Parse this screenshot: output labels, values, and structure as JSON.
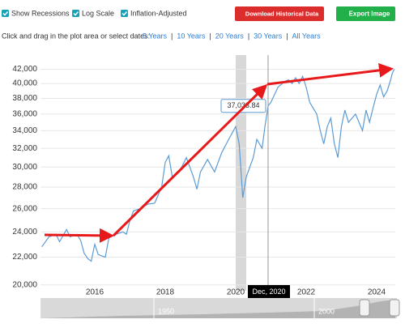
{
  "controls": {
    "checkboxes": [
      "Show Recessions",
      "Log Scale",
      "Inflation-Adjusted"
    ],
    "buttons": [
      "Download Historical Data",
      "Export Image"
    ],
    "date_prompt": "Click and drag in the plot area or select dates:",
    "range_links": [
      "5 Years",
      "10 Years",
      "20 Years",
      "30 Years",
      "All Years"
    ],
    "range_separator": "|"
  },
  "chart_data": {
    "type": "line",
    "log_scale": true,
    "grid": true,
    "ylim": [
      19600,
      43500
    ],
    "yticks": [
      {
        "value": 20000,
        "label": "20,000"
      },
      {
        "value": 22000,
        "label": "22,000"
      },
      {
        "value": 24000,
        "label": "24,000"
      },
      {
        "value": 26000,
        "label": "26,000"
      },
      {
        "value": 28000,
        "label": "28,000"
      },
      {
        "value": 30000,
        "label": "30,000"
      },
      {
        "value": 32000,
        "label": "32,000"
      },
      {
        "value": 34000,
        "label": "34,000"
      },
      {
        "value": 36000,
        "label": "36,000"
      },
      {
        "value": 38000,
        "label": "38,000"
      },
      {
        "value": 40000,
        "label": "40,000"
      },
      {
        "value": 42000,
        "label": "42,000"
      }
    ],
    "xlim": [
      2014.46,
      2024.53
    ],
    "xticks": [
      2016,
      2018,
      2020,
      2022,
      2024
    ],
    "recessions": [
      [
        2020.0,
        2020.3
      ]
    ],
    "series": [
      {
        "name": "Value",
        "color": "#5b9bd5",
        "x": [
          2014.5,
          2014.7,
          2014.9,
          2015.0,
          2015.2,
          2015.3,
          2015.5,
          2015.6,
          2015.7,
          2015.8,
          2015.9,
          2016.0,
          2016.1,
          2016.3,
          2016.4,
          2016.6,
          2016.8,
          2016.9,
          2017.0,
          2017.1,
          2017.3,
          2017.5,
          2017.7,
          2017.9,
          2018.0,
          2018.1,
          2018.2,
          2018.4,
          2018.6,
          2018.8,
          2018.9,
          2019.0,
          2019.2,
          2019.4,
          2019.6,
          2019.8,
          2020.0,
          2020.1,
          2020.2,
          2020.3,
          2020.5,
          2020.6,
          2020.75,
          2020.83,
          2020.92,
          2021.0,
          2021.2,
          2021.4,
          2021.5,
          2021.6,
          2021.7,
          2021.8,
          2021.9,
          2022.0,
          2022.1,
          2022.3,
          2022.4,
          2022.5,
          2022.6,
          2022.7,
          2022.8,
          2022.9,
          2023.0,
          2023.1,
          2023.2,
          2023.4,
          2023.5,
          2023.6,
          2023.7,
          2023.8,
          2023.9,
          2024.0,
          2024.1,
          2024.2,
          2024.3,
          2024.4,
          2024.45,
          2024.5
        ],
        "values": [
          22800,
          23600,
          23800,
          23200,
          24200,
          23600,
          23800,
          23300,
          22300,
          21900,
          21700,
          23000,
          22200,
          22000,
          23500,
          23800,
          24000,
          23800,
          25000,
          25800,
          26000,
          26400,
          26500,
          28000,
          30500,
          31200,
          29000,
          29500,
          31000,
          29000,
          27800,
          29500,
          30800,
          29500,
          31500,
          33000,
          34500,
          32500,
          27000,
          29000,
          31000,
          33000,
          32000,
          34500,
          37034,
          37500,
          39500,
          40300,
          40500,
          40000,
          40800,
          40000,
          41000,
          39500,
          37500,
          36000,
          34000,
          32500,
          34500,
          35500,
          32500,
          31000,
          34500,
          36500,
          35000,
          36000,
          35000,
          34000,
          36500,
          35000,
          36800,
          38500,
          39800,
          38200,
          39000,
          40500,
          41500,
          42000
        ]
      }
    ],
    "crosshair": {
      "x": 2020.92,
      "label": "Dec, 2020",
      "value": 37033.84,
      "value_label": "37,033.84"
    },
    "navigator": {
      "labels": [
        "1950",
        "2000"
      ]
    }
  }
}
